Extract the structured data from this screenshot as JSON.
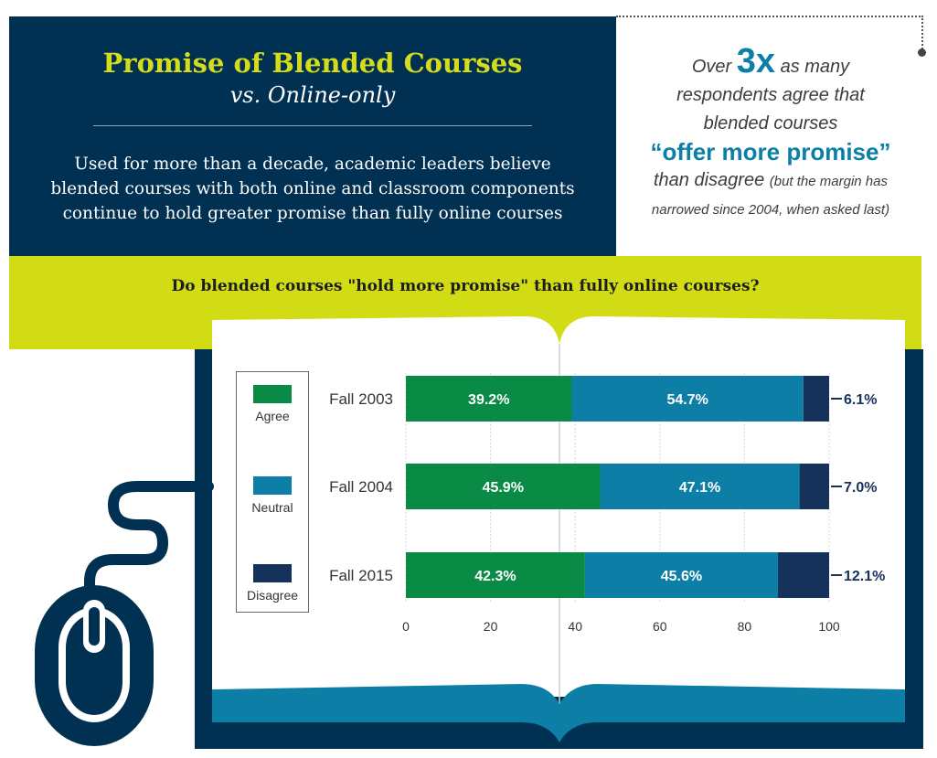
{
  "header": {
    "title": "Promise of Blended Courses",
    "subtitle": "vs. Online-only",
    "description": [
      "Used for more than a decade, academic leaders believe",
      "blended courses with both online and classroom components",
      "continue to hold greater promise than fully online courses"
    ]
  },
  "callout": {
    "over": "Over",
    "multiplier": "3x",
    "as_many": "as many",
    "line2": "respondents agree that",
    "line3": "blended courses",
    "promise": "“offer more promise”",
    "than": "than disagree",
    "note_a": "(but the margin has",
    "note_b": "narrowed since 2004, when asked last)"
  },
  "colors": {
    "navy": "#003152",
    "lime": "#d2dc14",
    "agree": "#098a45",
    "neutral": "#0d7fa6",
    "disagree": "#15335a"
  },
  "icons": [
    "computer-mouse-icon",
    "open-book-icon"
  ],
  "chart_data": {
    "type": "bar",
    "orientation": "horizontal",
    "stacked": true,
    "title": "Do blended courses \"hold more promise\" than fully online courses?",
    "categories": [
      "Fall 2003",
      "Fall 2004",
      "Fall 2015"
    ],
    "series": [
      {
        "name": "Agree",
        "values": [
          39.2,
          45.9,
          42.3
        ],
        "color": "#098a45"
      },
      {
        "name": "Neutral",
        "values": [
          54.7,
          47.1,
          45.6
        ],
        "color": "#0d7fa6"
      },
      {
        "name": "Disagree",
        "values": [
          6.1,
          7.0,
          12.1
        ],
        "color": "#15335a"
      }
    ],
    "data_labels": [
      [
        "39.2%",
        "54.7%",
        "6.1%"
      ],
      [
        "45.9%",
        "47.1%",
        "7.0%"
      ],
      [
        "42.3%",
        "45.6%",
        "12.1%"
      ]
    ],
    "xlim": [
      0,
      100
    ],
    "xticks": [
      0,
      20,
      40,
      60,
      80,
      100
    ],
    "grid": true,
    "legend_position": "left"
  }
}
